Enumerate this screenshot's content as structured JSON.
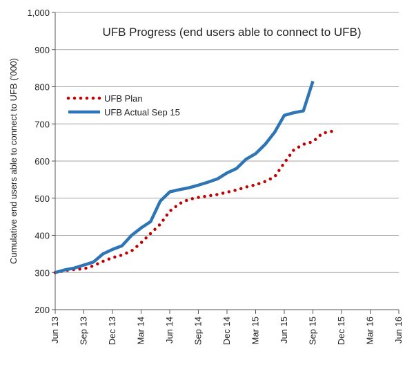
{
  "chart_data": {
    "type": "line",
    "title": "UFB Progress (end users able to connect to UFB)",
    "xlabel": "",
    "ylabel": "Cumulative end users able to connect to UFB ('000)",
    "ylim": [
      200,
      1000
    ],
    "y_ticks": [
      200,
      300,
      400,
      500,
      600,
      700,
      800,
      900,
      1000
    ],
    "y_tick_labels": [
      "200",
      "300",
      "400",
      "500",
      "600",
      "700",
      "800",
      "900",
      "1,000"
    ],
    "x_tick_labels": [
      "Jun 13",
      "Sep 13",
      "Dec 13",
      "Mar 14",
      "Jun 14",
      "Sep 14",
      "Dec 14",
      "Mar 15",
      "Jun 15",
      "Sep 15",
      "Dec 15",
      "Mar 16",
      "Jun 16"
    ],
    "x_range_months": [
      0,
      36
    ],
    "grid": "horizontal",
    "legend_placement": "left",
    "series": [
      {
        "name": "UFB Plan",
        "style": "dotted",
        "color": "#c00000",
        "points": [
          [
            0,
            300
          ],
          [
            1,
            305
          ],
          [
            2,
            308
          ],
          [
            3,
            310
          ],
          [
            4,
            318
          ],
          [
            5,
            330
          ],
          [
            6,
            340
          ],
          [
            7,
            347
          ],
          [
            8,
            358
          ],
          [
            9,
            380
          ],
          [
            10,
            405
          ],
          [
            11,
            430
          ],
          [
            12,
            465
          ],
          [
            13,
            485
          ],
          [
            14,
            497
          ],
          [
            15,
            502
          ],
          [
            16,
            506
          ],
          [
            17,
            510
          ],
          [
            18,
            516
          ],
          [
            19,
            522
          ],
          [
            20,
            530
          ],
          [
            21,
            536
          ],
          [
            22,
            545
          ],
          [
            23,
            558
          ],
          [
            24,
            595
          ],
          [
            25,
            630
          ],
          [
            26,
            645
          ],
          [
            27,
            652
          ],
          [
            28,
            675
          ],
          [
            29,
            680
          ]
        ]
      },
      {
        "name": "UFB Actual Sep 15",
        "style": "solid",
        "color": "#2e75b6",
        "points": [
          [
            0,
            300
          ],
          [
            1,
            307
          ],
          [
            2,
            312
          ],
          [
            3,
            320
          ],
          [
            4,
            328
          ],
          [
            5,
            350
          ],
          [
            6,
            362
          ],
          [
            7,
            372
          ],
          [
            8,
            400
          ],
          [
            9,
            420
          ],
          [
            10,
            437
          ],
          [
            11,
            492
          ],
          [
            12,
            517
          ],
          [
            13,
            523
          ],
          [
            14,
            528
          ],
          [
            15,
            535
          ],
          [
            16,
            543
          ],
          [
            17,
            552
          ],
          [
            18,
            568
          ],
          [
            19,
            580
          ],
          [
            20,
            605
          ],
          [
            21,
            620
          ],
          [
            22,
            645
          ],
          [
            23,
            678
          ],
          [
            24,
            723
          ],
          [
            25,
            730
          ],
          [
            26,
            735
          ],
          [
            27,
            815
          ]
        ]
      }
    ]
  }
}
